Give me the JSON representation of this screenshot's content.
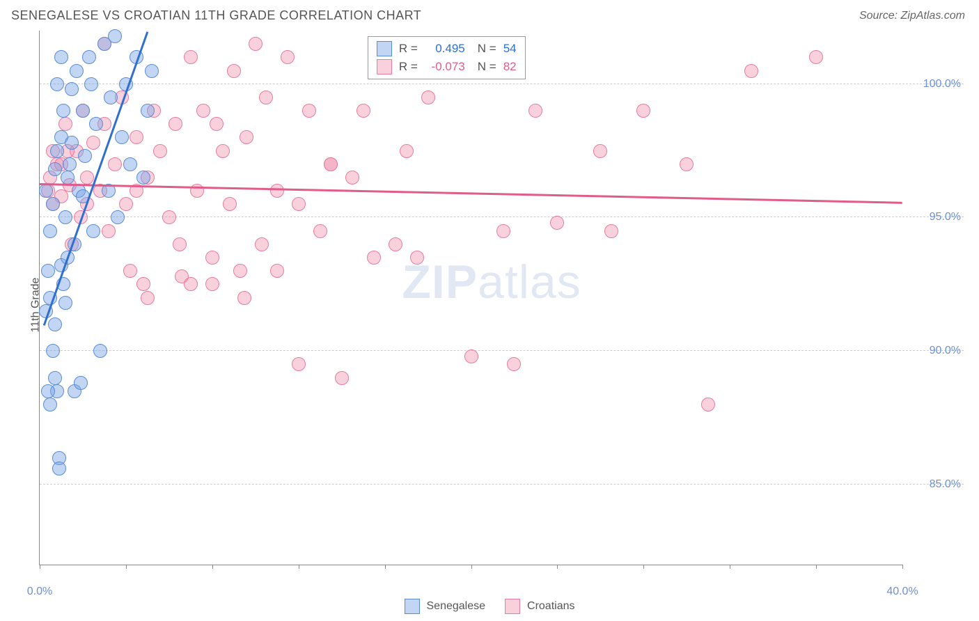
{
  "title": "SENEGALESE VS CROATIAN 11TH GRADE CORRELATION CHART",
  "source": "Source: ZipAtlas.com",
  "ylabel": "11th Grade",
  "watermark": {
    "bold": "ZIP",
    "rest": "atlas"
  },
  "colors": {
    "senegalese_fill": "rgba(120,165,230,0.45)",
    "senegalese_stroke": "#5a8cd6",
    "croatian_fill": "rgba(240,140,170,0.40)",
    "croatian_stroke": "#e87ba0",
    "trend_senegalese": "#2f6fd0",
    "trend_croatian": "#e05c8a",
    "grid": "#cccccc",
    "axis": "#888888",
    "tick_text": "#6b8fd6"
  },
  "chart": {
    "type": "scatter",
    "xlim": [
      0,
      40
    ],
    "ylim": [
      82,
      102
    ],
    "ygrid": [
      85,
      90,
      95,
      100
    ],
    "ytick_labels": [
      "85.0%",
      "90.0%",
      "95.0%",
      "100.0%"
    ],
    "xticks": [
      0,
      4,
      8,
      12,
      16,
      20,
      24,
      28,
      32,
      36,
      40
    ],
    "xtick_labels": {
      "0": "0.0%",
      "40": "40.0%"
    },
    "marker_radius": 10,
    "stats_box": {
      "left_pct": 38,
      "top_pct": 1
    },
    "stats": [
      {
        "series": "senegalese",
        "R_label": "R =",
        "R": "0.495",
        "N_label": "N =",
        "N": "54"
      },
      {
        "series": "croatian",
        "R_label": "R =",
        "R": "-0.073",
        "N_label": "N =",
        "N": "82"
      }
    ],
    "legend": [
      {
        "key": "senegalese",
        "label": "Senegalese"
      },
      {
        "key": "croatian",
        "label": "Croatians"
      }
    ],
    "trend_lines": {
      "senegalese": {
        "x1": 0.2,
        "y1": 91.0,
        "x2": 5.0,
        "y2": 102.0
      },
      "croatian": {
        "x1": 0.0,
        "y1": 96.3,
        "x2": 40.0,
        "y2": 95.6
      }
    },
    "series": {
      "senegalese": [
        [
          0.3,
          91.5
        ],
        [
          0.4,
          93.0
        ],
        [
          0.5,
          92.0
        ],
        [
          0.5,
          94.5
        ],
        [
          0.6,
          90.0
        ],
        [
          0.6,
          95.5
        ],
        [
          0.7,
          89.0
        ],
        [
          0.7,
          96.8
        ],
        [
          0.8,
          88.5
        ],
        [
          0.8,
          97.5
        ],
        [
          0.9,
          86.0
        ],
        [
          0.9,
          85.6
        ],
        [
          1.0,
          93.2
        ],
        [
          1.0,
          98.0
        ],
        [
          1.1,
          99.0
        ],
        [
          1.2,
          95.0
        ],
        [
          1.2,
          91.8
        ],
        [
          1.3,
          96.5
        ],
        [
          1.4,
          97.0
        ],
        [
          1.5,
          99.8
        ],
        [
          1.6,
          94.0
        ],
        [
          1.6,
          88.5
        ],
        [
          1.7,
          100.5
        ],
        [
          1.8,
          96.0
        ],
        [
          1.9,
          88.8
        ],
        [
          2.0,
          99.0
        ],
        [
          2.0,
          95.8
        ],
        [
          2.1,
          97.3
        ],
        [
          2.3,
          101.0
        ],
        [
          2.4,
          100.0
        ],
        [
          2.5,
          94.5
        ],
        [
          2.6,
          98.5
        ],
        [
          2.8,
          90.0
        ],
        [
          3.0,
          101.5
        ],
        [
          3.2,
          96.0
        ],
        [
          3.3,
          99.5
        ],
        [
          3.5,
          101.8
        ],
        [
          3.6,
          95.0
        ],
        [
          3.8,
          98.0
        ],
        [
          4.0,
          100.0
        ],
        [
          4.2,
          97.0
        ],
        [
          4.5,
          101.0
        ],
        [
          4.8,
          96.5
        ],
        [
          5.0,
          99.0
        ],
        [
          5.2,
          100.5
        ],
        [
          0.4,
          88.5
        ],
        [
          0.5,
          88.0
        ],
        [
          0.7,
          91.0
        ],
        [
          1.1,
          92.5
        ],
        [
          1.3,
          93.5
        ],
        [
          1.5,
          97.8
        ],
        [
          0.3,
          96.0
        ],
        [
          0.8,
          100.0
        ],
        [
          1.0,
          101.0
        ]
      ],
      "croatian": [
        [
          0.4,
          96.0
        ],
        [
          0.5,
          96.5
        ],
        [
          0.6,
          95.5
        ],
        [
          0.8,
          97.0
        ],
        [
          1.0,
          95.8
        ],
        [
          1.2,
          98.5
        ],
        [
          1.4,
          96.2
        ],
        [
          1.5,
          94.0
        ],
        [
          1.7,
          97.5
        ],
        [
          1.9,
          95.0
        ],
        [
          2.0,
          99.0
        ],
        [
          2.2,
          96.5
        ],
        [
          2.5,
          97.8
        ],
        [
          2.8,
          96.0
        ],
        [
          3.0,
          98.5
        ],
        [
          3.2,
          94.5
        ],
        [
          3.5,
          97.0
        ],
        [
          3.8,
          99.5
        ],
        [
          4.0,
          95.5
        ],
        [
          4.2,
          93.0
        ],
        [
          4.5,
          98.0
        ],
        [
          4.8,
          92.5
        ],
        [
          5.0,
          96.5
        ],
        [
          5.3,
          99.0
        ],
        [
          5.6,
          97.5
        ],
        [
          6.0,
          95.0
        ],
        [
          6.3,
          98.5
        ],
        [
          6.6,
          92.8
        ],
        [
          7.0,
          101.0
        ],
        [
          7.3,
          96.0
        ],
        [
          7.6,
          99.0
        ],
        [
          8.0,
          93.5
        ],
        [
          8.0,
          92.5
        ],
        [
          8.5,
          97.5
        ],
        [
          8.8,
          95.5
        ],
        [
          9.0,
          100.5
        ],
        [
          9.3,
          93.0
        ],
        [
          9.6,
          98.0
        ],
        [
          10.0,
          101.5
        ],
        [
          10.3,
          94.0
        ],
        [
          10.5,
          99.5
        ],
        [
          11.0,
          96.0
        ],
        [
          11.5,
          101.0
        ],
        [
          12.0,
          95.5
        ],
        [
          12.0,
          89.5
        ],
        [
          12.5,
          99.0
        ],
        [
          13.0,
          94.5
        ],
        [
          13.5,
          97.0
        ],
        [
          14.0,
          89.0
        ],
        [
          14.5,
          96.5
        ],
        [
          15.0,
          99.0
        ],
        [
          15.5,
          93.5
        ],
        [
          16.5,
          94.0
        ],
        [
          17.0,
          97.5
        ],
        [
          17.5,
          93.5
        ],
        [
          18.0,
          99.5
        ],
        [
          20.0,
          89.8
        ],
        [
          21.0,
          101.0
        ],
        [
          21.5,
          94.5
        ],
        [
          22.0,
          89.5
        ],
        [
          23.0,
          99.0
        ],
        [
          24.0,
          94.8
        ],
        [
          26.0,
          97.5
        ],
        [
          26.5,
          94.5
        ],
        [
          28.0,
          99.0
        ],
        [
          30.0,
          97.0
        ],
        [
          31.0,
          88.0
        ],
        [
          33.0,
          100.5
        ],
        [
          36.0,
          101.0
        ],
        [
          3.0,
          101.5
        ],
        [
          5.0,
          92.0
        ],
        [
          6.5,
          94.0
        ],
        [
          7.0,
          92.5
        ],
        [
          8.2,
          98.5
        ],
        [
          9.5,
          92.0
        ],
        [
          11.0,
          93.0
        ],
        [
          13.5,
          97.0
        ],
        [
          0.6,
          97.5
        ],
        [
          1.0,
          97.0
        ],
        [
          1.3,
          97.5
        ],
        [
          2.2,
          95.5
        ],
        [
          4.5,
          96.0
        ]
      ]
    }
  }
}
